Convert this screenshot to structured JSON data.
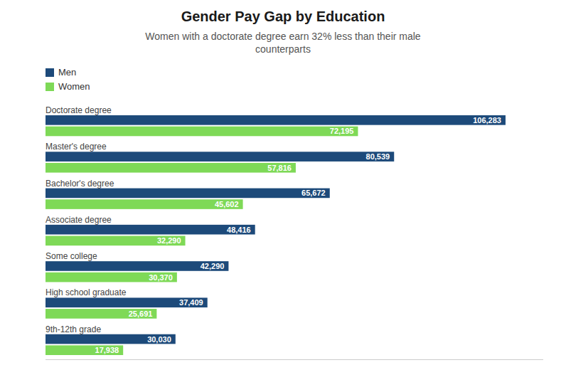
{
  "chart_data": {
    "type": "bar",
    "orientation": "horizontal",
    "title": "Gender Pay Gap by Education",
    "subtitle": "Women with a doctorate degree earn 32% less than their male\ncounterparts",
    "categories": [
      "Doctorate degree",
      "Master's degree",
      "Bachelor's degree",
      "Associate degree",
      "Some college",
      "High school graduate",
      "9th-12th grade"
    ],
    "series": [
      {
        "name": "Men",
        "color": "#1d4a7a",
        "values": [
          106283,
          80539,
          65672,
          48416,
          42290,
          37409,
          30030
        ],
        "value_labels": [
          "106,283",
          "80,539",
          "65,672",
          "48,416",
          "42,290",
          "37,409",
          "30,030"
        ]
      },
      {
        "name": "Women",
        "color": "#7ed957",
        "values": [
          72195,
          57816,
          45602,
          32290,
          30370,
          25691,
          17938
        ],
        "value_labels": [
          "72,195",
          "57,816",
          "45,602",
          "32,290",
          "30,370",
          "25,691",
          "17,938"
        ]
      }
    ],
    "xlim": [
      0,
      115000
    ],
    "data_labels": true,
    "tick_labels": false,
    "grid": false,
    "legend": "upper left"
  }
}
